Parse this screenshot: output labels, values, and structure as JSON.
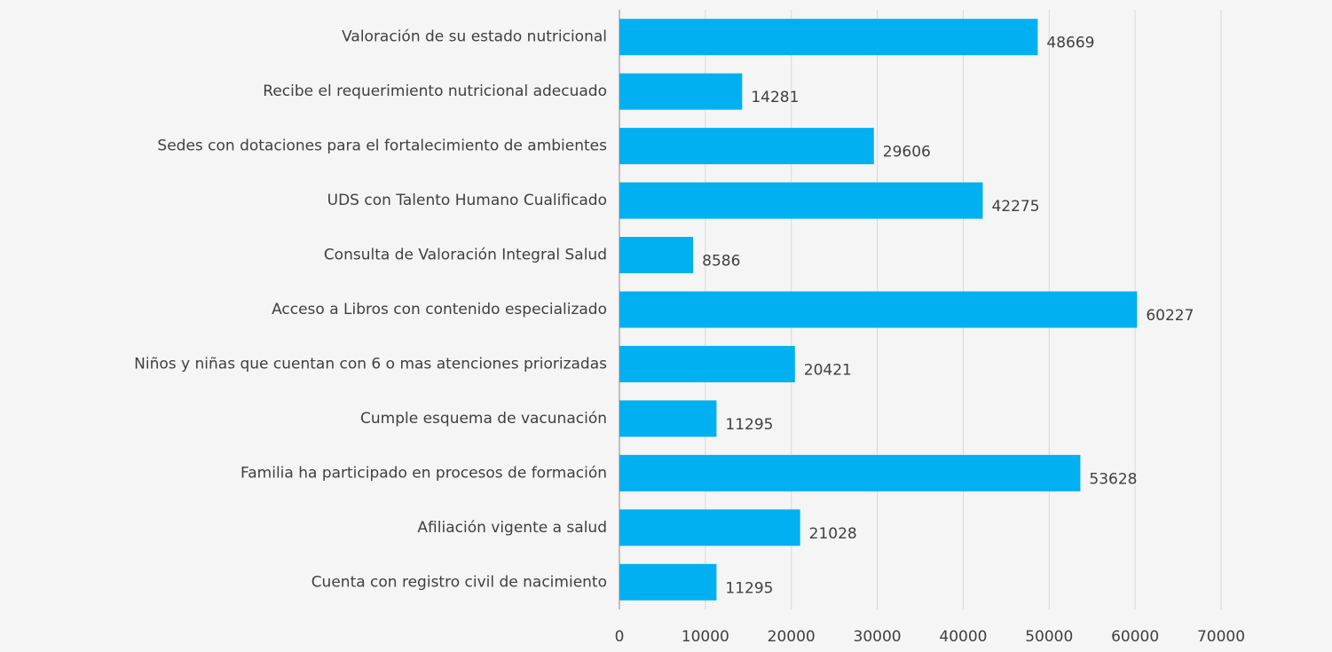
{
  "chart_data": {
    "type": "bar",
    "orientation": "horizontal",
    "categories": [
      "Valoración de su estado nutricional",
      "Recibe el requerimiento nutricional adecuado",
      "Sedes con dotaciones para el fortalecimiento de ambientes",
      "UDS con Talento Humano Cualificado",
      "Consulta de Valoración Integral Salud",
      "Acceso a Libros con contenido especializado",
      "Niños y niñas que cuentan con 6 o mas atenciones priorizadas",
      "Cumple esquema de vacunación",
      "Familia ha participado en procesos de formación",
      "Afiliación vigente a salud",
      "Cuenta con registro civil de nacimiento"
    ],
    "values": [
      48669,
      14281,
      29606,
      42275,
      8586,
      60227,
      20421,
      11295,
      53628,
      21028,
      11295
    ],
    "color": "#00b0f0",
    "xlim": [
      0,
      70000
    ],
    "xticks": [
      0,
      10000,
      20000,
      30000,
      40000,
      50000,
      60000,
      70000
    ],
    "grid": true
  }
}
